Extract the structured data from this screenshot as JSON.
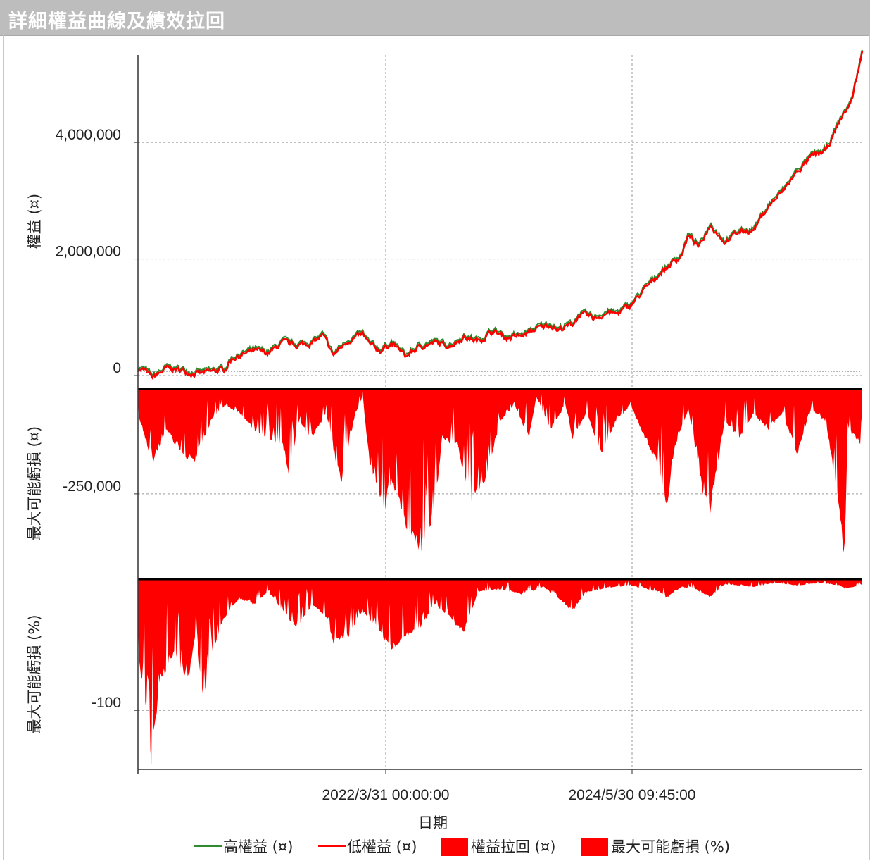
{
  "window": {
    "title": "詳細權益曲線及績效拉回"
  },
  "chart_data": {
    "type": "line",
    "xlabel": "日期",
    "x_ticks": [
      "2022/3/31 00:00:00",
      "2024/5/30 09:45:00"
    ],
    "panels": [
      {
        "id": "equity",
        "type": "line",
        "ylabel": "權益 (¤)",
        "y_ticks": [
          0,
          2000000,
          4000000
        ],
        "y_tick_labels": [
          "0",
          "2,000,000",
          "4,000,000"
        ],
        "ylim": [
          -60000,
          5500000
        ],
        "grid": true,
        "series": [
          {
            "name": "高權益 (¤)",
            "color": "#2e8b2e"
          },
          {
            "name": "低權益 (¤)",
            "color": "#ff0000"
          }
        ],
        "points": [
          [
            0,
            120000
          ],
          [
            0.01,
            80000
          ],
          [
            0.02,
            -40000
          ],
          [
            0.04,
            120000
          ],
          [
            0.06,
            90000
          ],
          [
            0.08,
            30000
          ],
          [
            0.1,
            60000
          ],
          [
            0.12,
            110000
          ],
          [
            0.13,
            300000
          ],
          [
            0.16,
            420000
          ],
          [
            0.18,
            380000
          ],
          [
            0.2,
            560000
          ],
          [
            0.22,
            520000
          ],
          [
            0.24,
            560000
          ],
          [
            0.255,
            680000
          ],
          [
            0.27,
            350000
          ],
          [
            0.29,
            600000
          ],
          [
            0.31,
            700000
          ],
          [
            0.32,
            520000
          ],
          [
            0.335,
            430000
          ],
          [
            0.35,
            560000
          ],
          [
            0.37,
            330000
          ],
          [
            0.39,
            500000
          ],
          [
            0.41,
            560000
          ],
          [
            0.43,
            510000
          ],
          [
            0.45,
            660000
          ],
          [
            0.47,
            590000
          ],
          [
            0.49,
            760000
          ],
          [
            0.51,
            650000
          ],
          [
            0.53,
            680000
          ],
          [
            0.55,
            800000
          ],
          [
            0.57,
            880000
          ],
          [
            0.58,
            780000
          ],
          [
            0.6,
            880000
          ],
          [
            0.61,
            1050000
          ],
          [
            0.63,
            980000
          ],
          [
            0.65,
            1090000
          ],
          [
            0.66,
            1050000
          ],
          [
            0.68,
            1200000
          ],
          [
            0.7,
            1480000
          ],
          [
            0.72,
            1750000
          ],
          [
            0.735,
            1900000
          ],
          [
            0.75,
            2060000
          ],
          [
            0.76,
            2400000
          ],
          [
            0.775,
            2200000
          ],
          [
            0.79,
            2600000
          ],
          [
            0.81,
            2300000
          ],
          [
            0.83,
            2460000
          ],
          [
            0.85,
            2500000
          ],
          [
            0.87,
            2900000
          ],
          [
            0.89,
            3150000
          ],
          [
            0.91,
            3500000
          ],
          [
            0.93,
            3750000
          ],
          [
            0.95,
            3850000
          ],
          [
            0.97,
            4400000
          ],
          [
            0.985,
            4700000
          ],
          [
            1.0,
            5550000
          ]
        ]
      },
      {
        "id": "drawdown-abs",
        "type": "area",
        "ylabel": "最大可能虧損 (¤)",
        "y_ticks": [
          -250000
        ],
        "y_tick_labels": [
          "-250,000"
        ],
        "ylim": [
          -450000,
          0
        ],
        "grid": true,
        "series": [
          {
            "name": "權益拉回 (¤)",
            "color": "#ff0000"
          }
        ],
        "points": [
          [
            0,
            -60000
          ],
          [
            0.02,
            -180000
          ],
          [
            0.04,
            -100000
          ],
          [
            0.06,
            -160000
          ],
          [
            0.08,
            -180000
          ],
          [
            0.1,
            -80000
          ],
          [
            0.12,
            -40000
          ],
          [
            0.14,
            -60000
          ],
          [
            0.16,
            -100000
          ],
          [
            0.18,
            -120000
          ],
          [
            0.2,
            -140000
          ],
          [
            0.21,
            -240000
          ],
          [
            0.22,
            -80000
          ],
          [
            0.24,
            -120000
          ],
          [
            0.26,
            -60000
          ],
          [
            0.28,
            -240000
          ],
          [
            0.3,
            -60000
          ],
          [
            0.31,
            -20000
          ],
          [
            0.32,
            -180000
          ],
          [
            0.34,
            -300000
          ],
          [
            0.35,
            -220000
          ],
          [
            0.37,
            -340000
          ],
          [
            0.39,
            -400000
          ],
          [
            0.41,
            -300000
          ],
          [
            0.42,
            -120000
          ],
          [
            0.44,
            -140000
          ],
          [
            0.46,
            -280000
          ],
          [
            0.48,
            -220000
          ],
          [
            0.5,
            -80000
          ],
          [
            0.52,
            -40000
          ],
          [
            0.54,
            -120000
          ],
          [
            0.55,
            -20000
          ],
          [
            0.57,
            -100000
          ],
          [
            0.59,
            -40000
          ],
          [
            0.6,
            -120000
          ],
          [
            0.62,
            -60000
          ],
          [
            0.64,
            -160000
          ],
          [
            0.66,
            -80000
          ],
          [
            0.68,
            -40000
          ],
          [
            0.7,
            -120000
          ],
          [
            0.72,
            -200000
          ],
          [
            0.73,
            -300000
          ],
          [
            0.74,
            -150000
          ],
          [
            0.76,
            -50000
          ],
          [
            0.78,
            -260000
          ],
          [
            0.79,
            -300000
          ],
          [
            0.81,
            -80000
          ],
          [
            0.83,
            -120000
          ],
          [
            0.85,
            -60000
          ],
          [
            0.87,
            -100000
          ],
          [
            0.89,
            -60000
          ],
          [
            0.91,
            -160000
          ],
          [
            0.93,
            -50000
          ],
          [
            0.95,
            -80000
          ],
          [
            0.97,
            -320000
          ],
          [
            0.975,
            -440000
          ],
          [
            0.98,
            -100000
          ],
          [
            1.0,
            -140000
          ]
        ]
      },
      {
        "id": "drawdown-pct",
        "type": "area",
        "ylabel": "最大可能虧損 (%)",
        "y_ticks": [
          -100
        ],
        "y_tick_labels": [
          "-100"
        ],
        "ylim": [
          -145,
          0
        ],
        "grid": true,
        "series": [
          {
            "name": "最大可能虧損 (%)",
            "color": "#ff0000"
          }
        ],
        "points": [
          [
            0,
            -60
          ],
          [
            0.01,
            -100
          ],
          [
            0.018,
            -145
          ],
          [
            0.03,
            -80
          ],
          [
            0.05,
            -60
          ],
          [
            0.07,
            -80
          ],
          [
            0.08,
            -40
          ],
          [
            0.09,
            -95
          ],
          [
            0.1,
            -60
          ],
          [
            0.12,
            -30
          ],
          [
            0.14,
            -15
          ],
          [
            0.16,
            -20
          ],
          [
            0.18,
            -10
          ],
          [
            0.2,
            -25
          ],
          [
            0.22,
            -40
          ],
          [
            0.24,
            -20
          ],
          [
            0.26,
            -30
          ],
          [
            0.27,
            -50
          ],
          [
            0.29,
            -45
          ],
          [
            0.31,
            -25
          ],
          [
            0.33,
            -40
          ],
          [
            0.35,
            -55
          ],
          [
            0.37,
            -45
          ],
          [
            0.39,
            -38
          ],
          [
            0.41,
            -20
          ],
          [
            0.43,
            -30
          ],
          [
            0.45,
            -42
          ],
          [
            0.47,
            -10
          ],
          [
            0.5,
            -8
          ],
          [
            0.53,
            -12
          ],
          [
            0.56,
            -6
          ],
          [
            0.58,
            -15
          ],
          [
            0.6,
            -25
          ],
          [
            0.62,
            -10
          ],
          [
            0.64,
            -8
          ],
          [
            0.66,
            -6
          ],
          [
            0.68,
            -5
          ],
          [
            0.7,
            -8
          ],
          [
            0.72,
            -10
          ],
          [
            0.73,
            -15
          ],
          [
            0.75,
            -6
          ],
          [
            0.77,
            -8
          ],
          [
            0.79,
            -14
          ],
          [
            0.81,
            -4
          ],
          [
            0.85,
            -6
          ],
          [
            0.88,
            -3
          ],
          [
            0.91,
            -5
          ],
          [
            0.94,
            -3
          ],
          [
            0.97,
            -5
          ],
          [
            0.975,
            -8
          ],
          [
            1.0,
            -4
          ]
        ]
      }
    ],
    "legend": {
      "position": "bottom",
      "items": [
        {
          "label": "高權益 (¤)",
          "kind": "line",
          "color": "#2e8b2e"
        },
        {
          "label": "低權益 (¤)",
          "kind": "line",
          "color": "#ff0000"
        },
        {
          "label": "權益拉回 (¤)",
          "kind": "box",
          "color": "#ff0000"
        },
        {
          "label": "最大可能虧損 (%)",
          "kind": "box",
          "color": "#ff0000"
        }
      ]
    }
  }
}
